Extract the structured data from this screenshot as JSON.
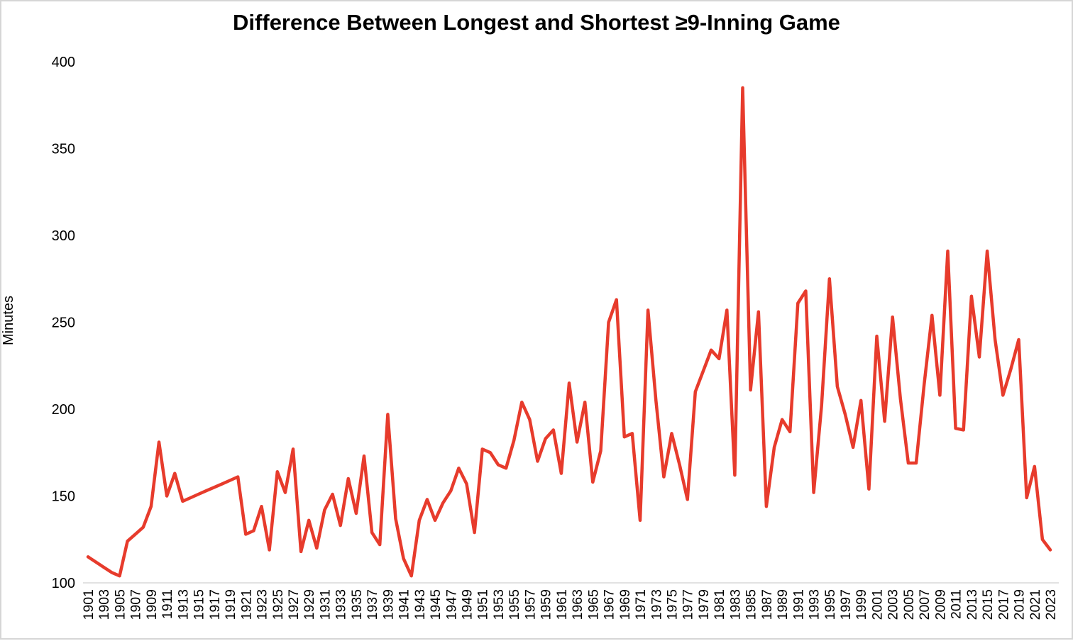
{
  "page": {
    "background": "#ffffff",
    "border_color": "#d6d6d6"
  },
  "chart_data": {
    "type": "line",
    "title": "Difference Between Longest and Shortest ≥9-Inning Game",
    "xlabel": "",
    "ylabel": "Minutes",
    "legend": "none",
    "grid": "off",
    "line_color": "#e73b2c",
    "axis_color": "#d9d9d9",
    "text_color": "#000000",
    "ylim": [
      100,
      400
    ],
    "y_ticks": [
      100,
      150,
      200,
      250,
      300,
      350,
      400
    ],
    "x_tick_labels": [
      "1901",
      "1903",
      "1905",
      "1907",
      "1909",
      "1911",
      "1913",
      "1915",
      "1917",
      "1919",
      "1921",
      "1923",
      "1925",
      "1927",
      "1929",
      "1931",
      "1933",
      "1935",
      "1937",
      "1939",
      "1941",
      "1943",
      "1945",
      "1947",
      "1949",
      "1951",
      "1953",
      "1955",
      "1957",
      "1959",
      "1961",
      "1963",
      "1965",
      "1967",
      "1969",
      "1971",
      "1973",
      "1975",
      "1977",
      "1979",
      "1981",
      "1983",
      "1985",
      "1987",
      "1989",
      "1991",
      "1993",
      "1995",
      "1997",
      "1999",
      "2001",
      "2003",
      "2005",
      "2007",
      "2009",
      "2011",
      "2013",
      "2015",
      "2017",
      "2019",
      "2021",
      "2023"
    ],
    "years": [
      1901,
      1902,
      1903,
      1904,
      1905,
      1906,
      1907,
      1908,
      1909,
      1910,
      1911,
      1912,
      1913,
      1914,
      1915,
      1916,
      1917,
      1918,
      1919,
      1920,
      1921,
      1922,
      1923,
      1924,
      1925,
      1926,
      1927,
      1928,
      1929,
      1930,
      1931,
      1932,
      1933,
      1934,
      1935,
      1936,
      1937,
      1938,
      1939,
      1940,
      1941,
      1942,
      1943,
      1944,
      1945,
      1946,
      1947,
      1948,
      1949,
      1950,
      1951,
      1952,
      1953,
      1954,
      1955,
      1956,
      1957,
      1958,
      1959,
      1960,
      1961,
      1962,
      1963,
      1964,
      1965,
      1966,
      1967,
      1968,
      1969,
      1970,
      1971,
      1972,
      1973,
      1974,
      1975,
      1976,
      1977,
      1978,
      1979,
      1980,
      1981,
      1982,
      1983,
      1984,
      1985,
      1986,
      1987,
      1988,
      1989,
      1990,
      1991,
      1992,
      1993,
      1994,
      1995,
      1996,
      1997,
      1998,
      1999,
      2000,
      2001,
      2002,
      2003,
      2004,
      2005,
      2006,
      2007,
      2008,
      2009,
      2010,
      2011,
      2012,
      2013,
      2014,
      2015,
      2016,
      2017,
      2018,
      2019,
      2020,
      2021,
      2022,
      2023
    ],
    "values": [
      115,
      112,
      109,
      106,
      104,
      124,
      128,
      132,
      144,
      181,
      150,
      163,
      147,
      149,
      151,
      153,
      155,
      157,
      159,
      161,
      128,
      130,
      144,
      119,
      164,
      152,
      177,
      118,
      136,
      120,
      142,
      151,
      133,
      160,
      140,
      173,
      129,
      122,
      197,
      137,
      114,
      104,
      136,
      148,
      136,
      146,
      153,
      166,
      157,
      129,
      177,
      175,
      168,
      166,
      182,
      204,
      194,
      170,
      183,
      188,
      163,
      215,
      181,
      204,
      158,
      176,
      250,
      263,
      184,
      186,
      136,
      257,
      205,
      161,
      186,
      168,
      148,
      210,
      222,
      234,
      229,
      257,
      162,
      385,
      211,
      256,
      144,
      178,
      194,
      187,
      261,
      268,
      152,
      202,
      275,
      213,
      197,
      178,
      205,
      154,
      242,
      193,
      253,
      206,
      169,
      169,
      214,
      254,
      208,
      291,
      189,
      188,
      265,
      230,
      291,
      240,
      208,
      223,
      240,
      149,
      167,
      125,
      119
    ]
  }
}
